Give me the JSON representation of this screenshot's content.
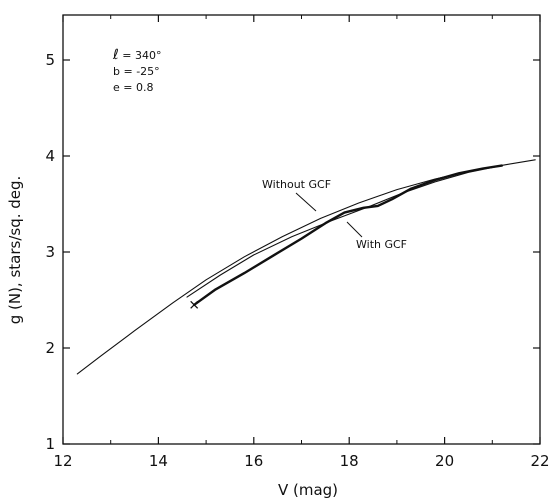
{
  "chart_data": {
    "type": "line",
    "title": "",
    "xlabel": "V (mag)",
    "ylabel": "g (N), stars/sq. deg.",
    "xlim": [
      12,
      22
    ],
    "ylim": [
      1,
      5.5
    ],
    "x_ticks": [
      12,
      14,
      16,
      18,
      20,
      22
    ],
    "y_ticks": [
      1,
      2,
      3,
      4,
      5
    ],
    "x_tick_labels": [
      "12",
      "14",
      "16",
      "18",
      "20",
      "22"
    ],
    "y_tick_labels": [
      "1",
      "2",
      "3",
      "4",
      "5"
    ],
    "grid": false,
    "parameters": [
      {
        "symbol": "ℓ",
        "text": " = 340°"
      },
      {
        "symbol": "",
        "text": "b = -25°"
      },
      {
        "symbol": "",
        "text": "e = 0.8"
      }
    ],
    "annotations": [
      {
        "text": "Without GCF",
        "series": 0
      },
      {
        "text": "With GCF",
        "series": 1
      }
    ],
    "series": [
      {
        "x": [
          12.3,
          12.8,
          13.5,
          14.3,
          15.0,
          15.8,
          16.6,
          17.4,
          18.2,
          19.0,
          19.8,
          20.6,
          21.3,
          21.9
        ],
        "y": [
          1.73,
          1.92,
          2.18,
          2.47,
          2.71,
          2.95,
          3.16,
          3.35,
          3.51,
          3.65,
          3.76,
          3.85,
          3.91,
          3.96
        ],
        "marker_end": null
      },
      {
        "x": [
          14.75,
          15.2,
          15.8,
          16.4,
          17.0,
          17.5,
          17.9,
          18.3,
          18.6,
          18.9,
          19.3,
          19.8,
          20.3,
          20.8,
          21.2
        ],
        "y": [
          2.45,
          2.61,
          2.78,
          2.96,
          3.14,
          3.3,
          3.41,
          3.46,
          3.48,
          3.55,
          3.66,
          3.75,
          3.82,
          3.87,
          3.9
        ],
        "marker_start": "x"
      },
      {
        "x": [
          14.6,
          15.3,
          16.0,
          16.8,
          17.6,
          18.4,
          19.1,
          19.8,
          20.5,
          21.2
        ],
        "y": [
          2.53,
          2.76,
          2.97,
          3.16,
          3.32,
          3.47,
          3.61,
          3.73,
          3.83,
          3.9
        ],
        "marker_start": null
      }
    ]
  }
}
